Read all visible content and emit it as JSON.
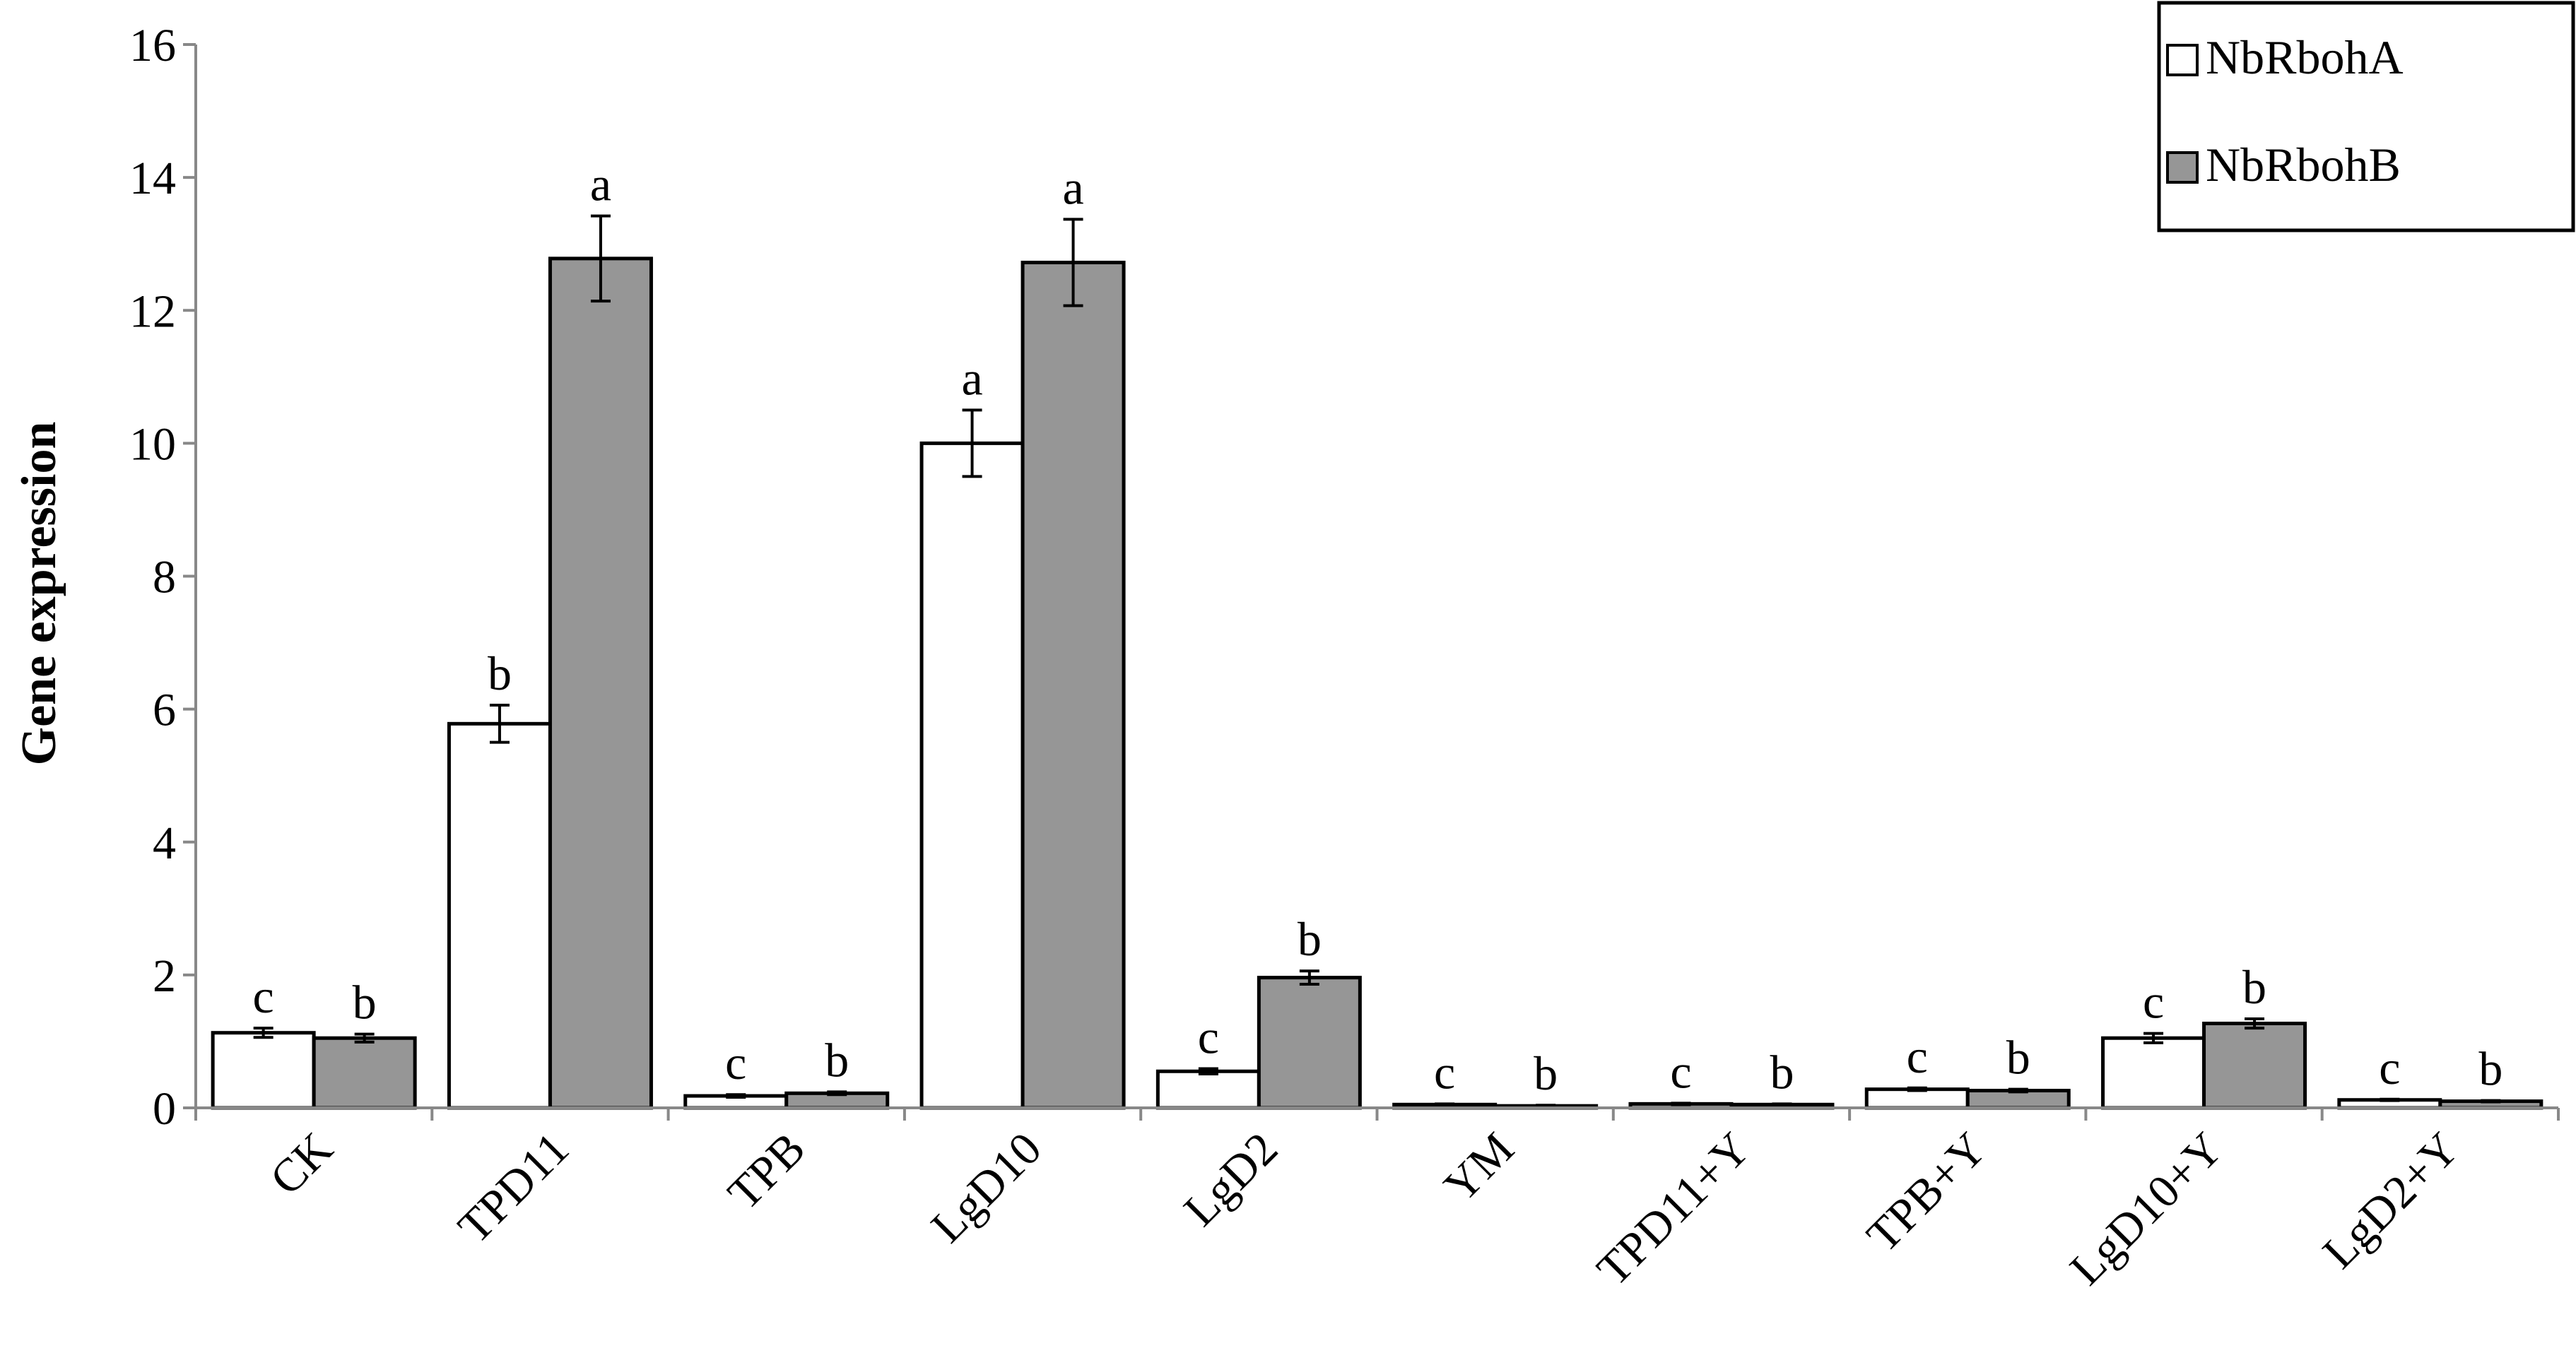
{
  "chart_data": {
    "type": "bar",
    "xlabel": "",
    "ylabel": "Gene expression",
    "ylim": [
      0,
      16
    ],
    "yticks": [
      "0",
      "2",
      "4",
      "6",
      "8",
      "10",
      "12",
      "14",
      "16"
    ],
    "grid": false,
    "legend_position": "top-right",
    "categories": [
      "CK",
      "TPD11",
      "TPB",
      "LgD10",
      "LgD2",
      "YM",
      "TPD11+Y",
      "TPB+Y",
      "LgD10+Y",
      "LgD2+Y"
    ],
    "series": [
      {
        "name": "NbRbohA",
        "color": "#ffffff",
        "values": [
          1.13,
          5.78,
          0.18,
          10.0,
          0.55,
          0.05,
          0.06,
          0.28,
          1.05,
          0.12
        ],
        "errors": [
          0.07,
          0.28,
          0.02,
          0.5,
          0.04,
          0.01,
          0.01,
          0.02,
          0.07,
          0.01
        ],
        "labels": [
          "c",
          "b",
          "c",
          "a",
          "c",
          "c",
          "c",
          "c",
          "c",
          "c"
        ]
      },
      {
        "name": "NbRbohB",
        "color": "#969696",
        "values": [
          1.05,
          12.78,
          0.22,
          12.72,
          1.96,
          0.03,
          0.05,
          0.26,
          1.27,
          0.1
        ],
        "errors": [
          0.06,
          0.64,
          0.02,
          0.65,
          0.1,
          0.01,
          0.01,
          0.02,
          0.07,
          0.01
        ],
        "labels": [
          "b",
          "a",
          "b",
          "a",
          "b",
          "b",
          "b",
          "b",
          "b",
          "b"
        ]
      }
    ]
  }
}
